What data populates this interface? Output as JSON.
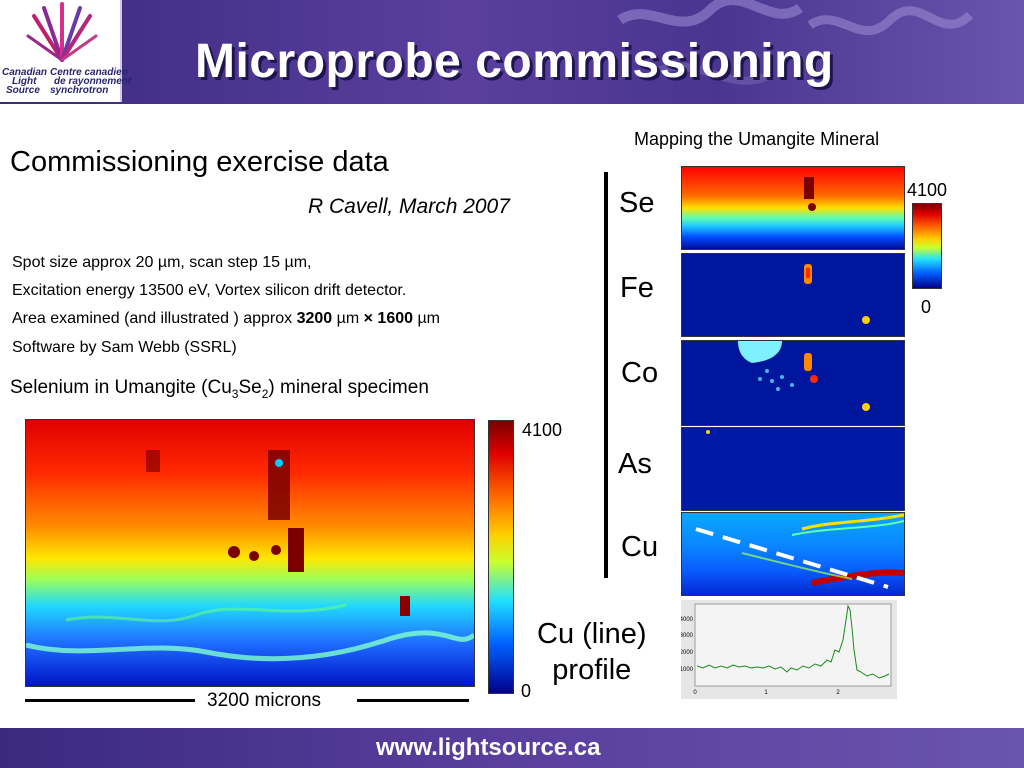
{
  "header": {
    "title": "Microprobe commissioning",
    "logo": {
      "en_line1": "Canadian",
      "en_line2": "Light",
      "en_line3": "Source",
      "fr_line1": "Centre canadien",
      "fr_line2": "de rayonnement",
      "fr_line3": "synchrotron"
    }
  },
  "left": {
    "subtitle": "Commissioning exercise data",
    "author": "R Cavell, March 2007",
    "details": {
      "line1": "Spot size approx 20 µm, scan step 15 µm,",
      "line2": "Excitation energy 13500 eV, Vortex silicon drift detector.",
      "line3_a": "Area examined (and illustrated ) approx ",
      "line3_b": "3200",
      "line3_c": " µm ",
      "line3_d": "× 1600",
      "line3_e": " µm",
      "line4": "Software by Sam Webb (SSRL)"
    },
    "specimen": {
      "a": "Selenium in Umangite (Cu",
      "sub1": "3",
      "b": "Se",
      "sub2": "2",
      "c": ") mineral specimen"
    },
    "big_map": {
      "colorbar_max": "4100",
      "colorbar_min": "0",
      "scale_label": "3200 microns"
    }
  },
  "right": {
    "map_title": "Mapping the  Umangite Mineral",
    "elements": [
      "Se",
      "Fe",
      "Co",
      "As",
      "Cu"
    ],
    "colorbar_max": "4100",
    "colorbar_min": "0",
    "profile_label_1": "Cu (line)",
    "profile_label_2": "profile"
  },
  "profile_plot": {
    "y_ticks": [
      "4000",
      "3000",
      "2000",
      "1000"
    ],
    "x_ticks": [
      "0",
      "1",
      "2"
    ]
  },
  "footer": {
    "url": "www.lightsource.ca"
  },
  "colors": {
    "header_bg": "#4a3590",
    "title_text": "#ffffff",
    "profile_line": "#1a8a1a"
  }
}
